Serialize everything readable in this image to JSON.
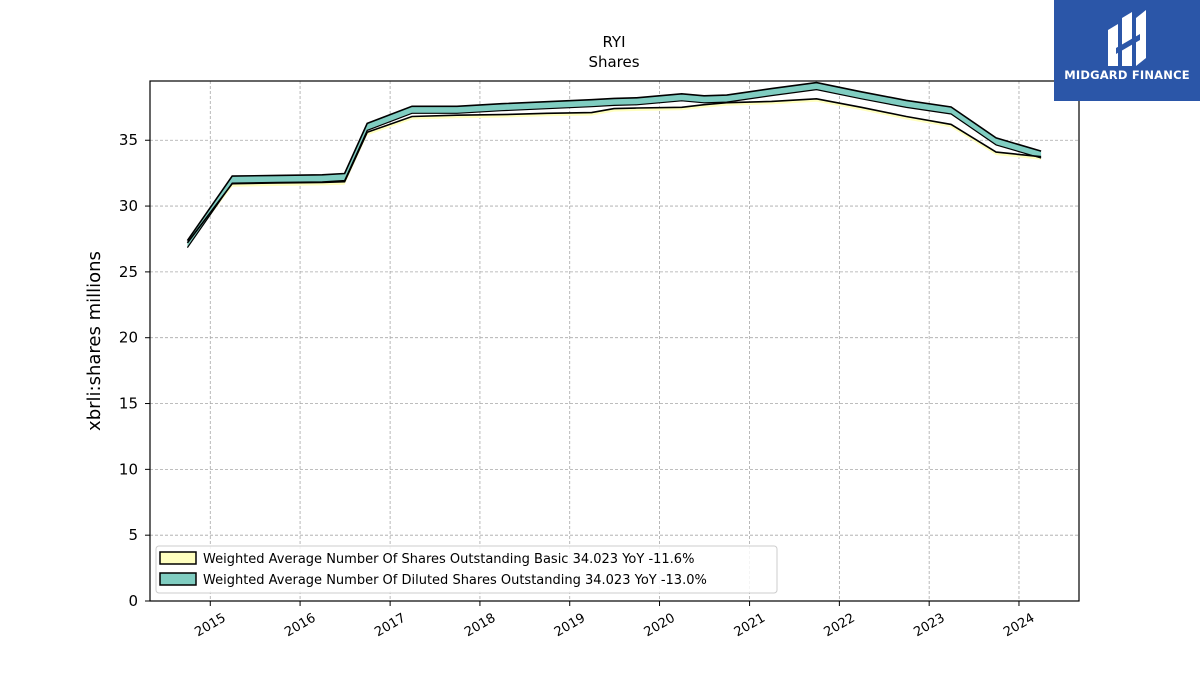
{
  "chart_data": {
    "type": "area",
    "title": "RYI",
    "subtitle": "Shares",
    "ylabel": "xbrli:shares millions",
    "xlabel": "",
    "ylim": [
      0,
      39.5
    ],
    "xlim": [
      "2014-05-01",
      "2024-09-01"
    ],
    "yticks": [
      0,
      5,
      10,
      15,
      20,
      25,
      30,
      35
    ],
    "xticks": [
      "2015",
      "2016",
      "2017",
      "2018",
      "2019",
      "2020",
      "2021",
      "2022",
      "2023",
      "2024"
    ],
    "grid": true,
    "legend_position": "lower-left",
    "x": [
      "2014-09-30",
      "2015-03-31",
      "2015-09-30",
      "2016-03-31",
      "2016-06-30",
      "2016-09-30",
      "2017-03-31",
      "2017-09-30",
      "2018-03-31",
      "2018-09-30",
      "2019-03-31",
      "2019-06-30",
      "2019-09-30",
      "2020-03-31",
      "2020-06-30",
      "2020-09-30",
      "2021-03-31",
      "2021-09-30",
      "2022-03-31",
      "2022-09-30",
      "2023-03-31",
      "2023-09-30",
      "2024-03-31"
    ],
    "series": [
      {
        "name": "Weighted Average Number Of Shares Outstanding Basic",
        "legend_label": "Weighted Average Number Of Shares Outstanding Basic  34.023 YoY -11.6%",
        "color": "#ffffbf",
        "values": [
          27.2,
          31.7,
          31.75,
          31.8,
          31.85,
          35.6,
          36.8,
          36.9,
          36.95,
          37.05,
          37.1,
          37.4,
          37.45,
          37.5,
          37.7,
          37.85,
          37.95,
          38.15,
          37.5,
          36.8,
          36.2,
          34.1,
          33.75
        ]
      },
      {
        "name": "Weighted Average Number Of Diluted Shares Outstanding",
        "legend_label": "Weighted Average Number Of Diluted Shares Outstanding  34.023 YoY -13.0%",
        "color": "#80cdc1",
        "values": [
          27.3,
          32.2,
          32.25,
          32.3,
          32.4,
          36.2,
          37.5,
          37.5,
          37.7,
          37.85,
          38.0,
          38.1,
          38.15,
          38.45,
          38.3,
          38.35,
          38.85,
          39.3,
          38.6,
          37.95,
          37.45,
          35.1,
          34.1
        ]
      }
    ]
  },
  "logo": {
    "text": "MIDGARD FINANCE"
  }
}
